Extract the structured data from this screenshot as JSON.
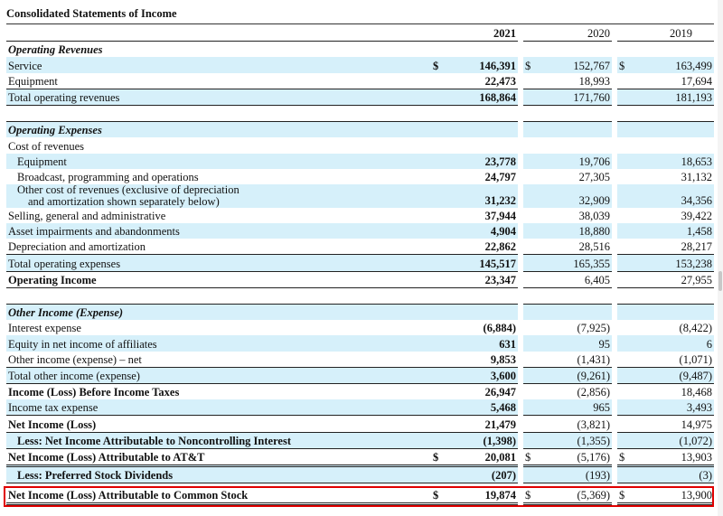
{
  "title": "Consolidated Statements of Income",
  "years": [
    "2021",
    "2020",
    "2019"
  ],
  "colors": {
    "row_highlight": "#d6f0fa",
    "selection_box": "#e00000"
  },
  "sections": {
    "operating_revenues": "Operating Revenues",
    "operating_expenses": "Operating Expenses",
    "other_income": "Other Income (Expense)"
  },
  "rows": {
    "service": {
      "label": "Service",
      "d1": "$",
      "v2021": "146,391",
      "d2": "$",
      "v2020": "152,767",
      "d3": "$",
      "v2019": "163,499"
    },
    "equipment_rev": {
      "label": "Equipment",
      "v2021": "22,473",
      "v2020": "18,993",
      "v2019": "17,694"
    },
    "total_operating_revenues": {
      "label": "Total operating revenues",
      "v2021": "168,864",
      "v2020": "171,760",
      "v2019": "181,193"
    },
    "cost_of_revenues": {
      "label": "Cost of revenues"
    },
    "equipment_cost": {
      "label": "Equipment",
      "v2021": "23,778",
      "v2020": "19,706",
      "v2019": "18,653"
    },
    "broadcast": {
      "label": "Broadcast, programming and operations",
      "v2021": "24,797",
      "v2020": "27,305",
      "v2019": "31,132"
    },
    "other_cost": {
      "label_line1": "Other cost of revenues (exclusive of depreciation",
      "label_line2": "and amortization shown separately below)",
      "v2021": "31,232",
      "v2020": "32,909",
      "v2019": "34,356"
    },
    "sga": {
      "label": "Selling, general and administrative",
      "v2021": "37,944",
      "v2020": "38,039",
      "v2019": "39,422"
    },
    "impairments": {
      "label": "Asset impairments and abandonments",
      "v2021": "4,904",
      "v2020": "18,880",
      "v2019": "1,458"
    },
    "depreciation": {
      "label": "Depreciation and amortization",
      "v2021": "22,862",
      "v2020": "28,516",
      "v2019": "28,217"
    },
    "total_operating_expenses": {
      "label": "Total operating expenses",
      "v2021": "145,517",
      "v2020": "165,355",
      "v2019": "153,238"
    },
    "operating_income": {
      "label": "Operating Income",
      "v2021": "23,347",
      "v2020": "6,405",
      "v2019": "27,955"
    },
    "interest_expense": {
      "label": "Interest expense",
      "v2021": "(6,884)",
      "v2020": "(7,925)",
      "v2019": "(8,422)"
    },
    "equity_affiliates": {
      "label": "Equity in net income of affiliates",
      "v2021": "631",
      "v2020": "95",
      "v2019": "6"
    },
    "other_income_net": {
      "label": "Other income (expense) – net",
      "v2021": "9,853",
      "v2020": "(1,431)",
      "v2019": "(1,071)"
    },
    "total_other_income": {
      "label": "Total other income (expense)",
      "v2021": "3,600",
      "v2020": "(9,261)",
      "v2019": "(9,487)"
    },
    "income_before_taxes": {
      "label": "Income (Loss) Before Income Taxes",
      "v2021": "26,947",
      "v2020": "(2,856)",
      "v2019": "18,468"
    },
    "income_tax": {
      "label": "Income tax expense",
      "v2021": "5,468",
      "v2020": "965",
      "v2019": "3,493"
    },
    "net_income": {
      "label": "Net Income (Loss)",
      "v2021": "21,479",
      "v2020": "(3,821)",
      "v2019": "14,975"
    },
    "noncontrolling": {
      "label": "Less: Net Income Attributable to Noncontrolling Interest",
      "v2021": "(1,398)",
      "v2020": "(1,355)",
      "v2019": "(1,072)"
    },
    "net_income_att": {
      "label": "Net Income (Loss) Attributable to AT&T",
      "d1": "$",
      "v2021": "20,081",
      "d2": "$",
      "v2020": "(5,176)",
      "d3": "$",
      "v2019": "13,903"
    },
    "preferred_dividends": {
      "label": "Less: Preferred Stock Dividends",
      "v2021": "(207)",
      "v2020": "(193)",
      "v2019": "(3)"
    },
    "net_income_common": {
      "label": "Net Income (Loss) Attributable to Common Stock",
      "d1": "$",
      "v2021": "19,874",
      "d2": "$",
      "v2020": "(5,369)",
      "d3": "$",
      "v2019": "13,900"
    }
  }
}
